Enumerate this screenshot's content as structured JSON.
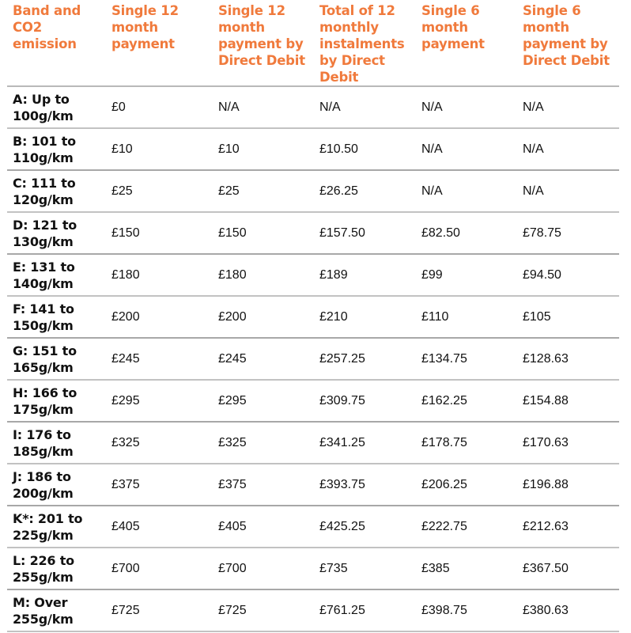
{
  "table": {
    "headers": [
      "Band and CO2 emission",
      "Single 12 month payment",
      "Single 12 month payment by Direct Debit",
      "Total of 12 monthly instalments by Direct Debit",
      "Single 6 month payment",
      "Single 6 month payment by Direct Debit"
    ],
    "rows": [
      [
        "A: Up to 100g/km",
        "£0",
        "N/A",
        "N/A",
        "N/A",
        "N/A"
      ],
      [
        "B: 101 to 110g/km",
        "£10",
        "£10",
        "£10.50",
        "N/A",
        "N/A"
      ],
      [
        "C: 111 to 120g/km",
        "£25",
        "£25",
        "£26.25",
        "N/A",
        "N/A"
      ],
      [
        "D: 121 to 130g/km",
        "£150",
        "£150",
        "£157.50",
        "£82.50",
        "£78.75"
      ],
      [
        "E: 131 to 140g/km",
        "£180",
        "£180",
        "£189",
        "£99",
        "£94.50"
      ],
      [
        "F: 141 to 150g/km",
        "£200",
        "£200",
        "£210",
        "£110",
        "£105"
      ],
      [
        "G: 151 to 165g/km",
        "£245",
        "£245",
        "£257.25",
        "£134.75",
        "£128.63"
      ],
      [
        "H: 166 to 175g/km",
        "£295",
        "£295",
        "£309.75",
        "£162.25",
        "£154.88"
      ],
      [
        "I: 176 to 185g/km",
        "£325",
        "£325",
        "£341.25",
        "£178.75",
        "£170.63"
      ],
      [
        "J: 186 to 200g/km",
        "£375",
        "£375",
        "£393.75",
        "£206.25",
        "£196.88"
      ],
      [
        "K*: 201 to 225g/km",
        "£405",
        "£405",
        "£425.25",
        "£222.75",
        "£212.63"
      ],
      [
        "L: 226 to 255g/km",
        "£700",
        "£700",
        "£735",
        "£385",
        "£367.50"
      ],
      [
        "M: Over 255g/km",
        "£725",
        "£725",
        "£761.25",
        "£398.75",
        "£380.63"
      ]
    ]
  },
  "colors": {
    "header_text": "#f07a3c",
    "body_text": "#111111",
    "rule": "#b0b0b0"
  }
}
